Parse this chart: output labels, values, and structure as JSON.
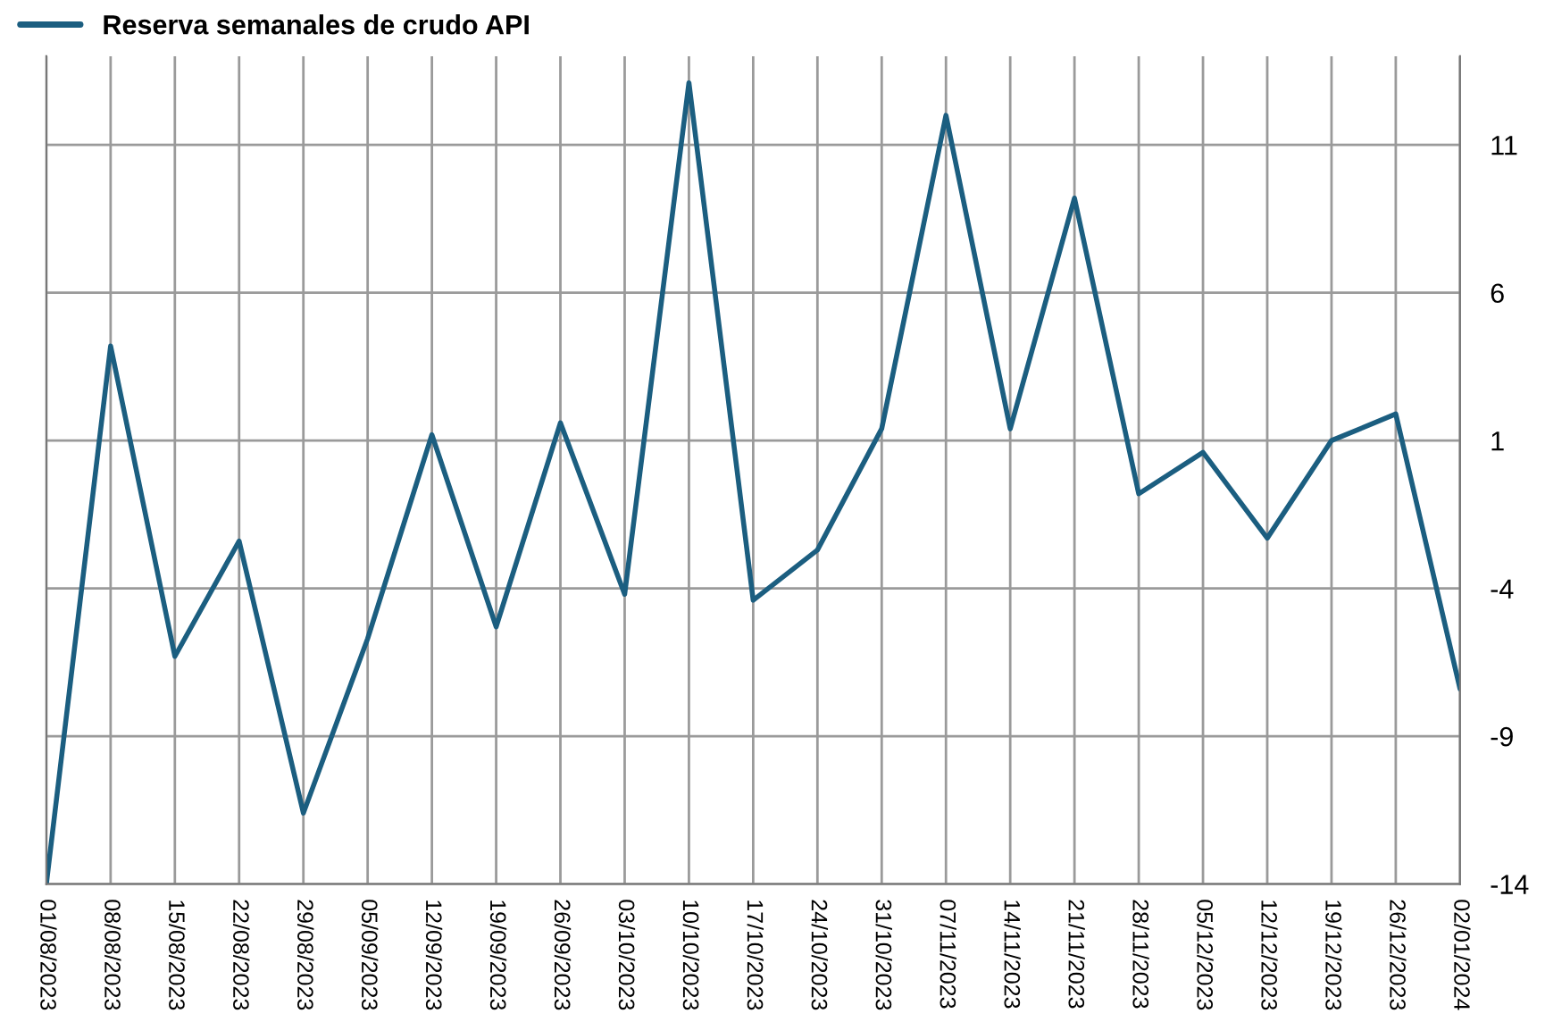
{
  "chart_data": {
    "type": "line",
    "categories": [
      "01/08/2023",
      "08/08/2023",
      "15/08/2023",
      "22/08/2023",
      "29/08/2023",
      "05/09/2023",
      "12/09/2023",
      "19/09/2023",
      "26/09/2023",
      "03/10/2023",
      "10/10/2023",
      "17/10/2023",
      "24/10/2023",
      "31/10/2023",
      "07/11/2023",
      "14/11/2023",
      "21/11/2023",
      "28/11/2023",
      "05/12/2023",
      "12/12/2023",
      "19/12/2023",
      "26/12/2023",
      "02/01/2024"
    ],
    "series": [
      {
        "name": "Reserva semanales de crudo API",
        "color": "#1b5e80",
        "values": [
          -14,
          4.2,
          -6.3,
          -2.4,
          -11.6,
          -5.7,
          1.2,
          -5.3,
          1.6,
          -4.2,
          13.1,
          -4.4,
          -2.7,
          1.4,
          12.0,
          1.4,
          9.2,
          -0.8,
          0.6,
          -2.3,
          1.0,
          1.9,
          -7.4
        ]
      }
    ],
    "ylim": [
      -14,
      14
    ],
    "yticks": [
      -14,
      -9,
      -4,
      1,
      6,
      11
    ],
    "grid": true,
    "legend": "top left",
    "marker": "none",
    "line_style": "solid"
  }
}
